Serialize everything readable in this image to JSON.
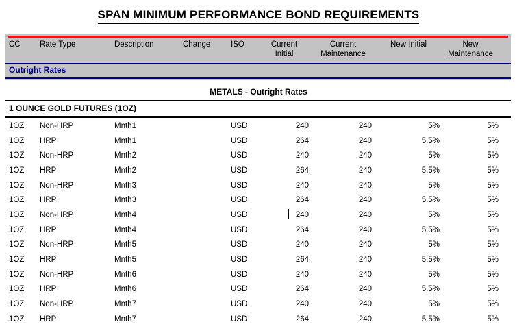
{
  "title": "SPAN MINIMUM PERFORMANCE BOND REQUIREMENTS",
  "band_label": "Outright Rates",
  "section_title": "METALS - Outright Rates",
  "group_title": "1 OUNCE GOLD FUTURES (1OZ)",
  "colors": {
    "accent_red": "#ee1111",
    "navy": "#000090",
    "band_gray": "#c3c3c3"
  },
  "headers": [
    {
      "l1": "CC",
      "l2": ""
    },
    {
      "l1": "Rate Type",
      "l2": ""
    },
    {
      "l1": "Description",
      "l2": ""
    },
    {
      "l1": "Change",
      "l2": ""
    },
    {
      "l1": "ISO",
      "l2": ""
    },
    {
      "l1": "Current",
      "l2": "Initial"
    },
    {
      "l1": "Current",
      "l2": "Maintenance"
    },
    {
      "l1": "New Initial",
      "l2": ""
    },
    {
      "l1": "New",
      "l2": "Maintenance"
    }
  ],
  "rows": [
    {
      "cc": "1OZ",
      "rate_type": "Non-HRP",
      "description": "Mnth1",
      "change": "",
      "iso": "USD",
      "current_initial": "240",
      "current_maintenance": "240",
      "new_initial": "5%",
      "new_maintenance": "5%"
    },
    {
      "cc": "1OZ",
      "rate_type": "HRP",
      "description": "Mnth1",
      "change": "",
      "iso": "USD",
      "current_initial": "264",
      "current_maintenance": "240",
      "new_initial": "5.5%",
      "new_maintenance": "5%"
    },
    {
      "cc": "1OZ",
      "rate_type": "Non-HRP",
      "description": "Mnth2",
      "change": "",
      "iso": "USD",
      "current_initial": "240",
      "current_maintenance": "240",
      "new_initial": "5%",
      "new_maintenance": "5%"
    },
    {
      "cc": "1OZ",
      "rate_type": "HRP",
      "description": "Mnth2",
      "change": "",
      "iso": "USD",
      "current_initial": "264",
      "current_maintenance": "240",
      "new_initial": "5.5%",
      "new_maintenance": "5%"
    },
    {
      "cc": "1OZ",
      "rate_type": "Non-HRP",
      "description": "Mnth3",
      "change": "",
      "iso": "USD",
      "current_initial": "240",
      "current_maintenance": "240",
      "new_initial": "5%",
      "new_maintenance": "5%"
    },
    {
      "cc": "1OZ",
      "rate_type": "HRP",
      "description": "Mnth3",
      "change": "",
      "iso": "USD",
      "current_initial": "264",
      "current_maintenance": "240",
      "new_initial": "5.5%",
      "new_maintenance": "5%"
    },
    {
      "cc": "1OZ",
      "rate_type": "Non-HRP",
      "description": "Mnth4",
      "change": "",
      "iso": "USD",
      "current_initial": "240",
      "current_maintenance": "240",
      "new_initial": "5%",
      "new_maintenance": "5%"
    },
    {
      "cc": "1OZ",
      "rate_type": "HRP",
      "description": "Mnth4",
      "change": "",
      "iso": "USD",
      "current_initial": "264",
      "current_maintenance": "240",
      "new_initial": "5.5%",
      "new_maintenance": "5%"
    },
    {
      "cc": "1OZ",
      "rate_type": "Non-HRP",
      "description": "Mnth5",
      "change": "",
      "iso": "USD",
      "current_initial": "240",
      "current_maintenance": "240",
      "new_initial": "5%",
      "new_maintenance": "5%"
    },
    {
      "cc": "1OZ",
      "rate_type": "HRP",
      "description": "Mnth5",
      "change": "",
      "iso": "USD",
      "current_initial": "264",
      "current_maintenance": "240",
      "new_initial": "5.5%",
      "new_maintenance": "5%"
    },
    {
      "cc": "1OZ",
      "rate_type": "Non-HRP",
      "description": "Mnth6",
      "change": "",
      "iso": "USD",
      "current_initial": "240",
      "current_maintenance": "240",
      "new_initial": "5%",
      "new_maintenance": "5%"
    },
    {
      "cc": "1OZ",
      "rate_type": "HRP",
      "description": "Mnth6",
      "change": "",
      "iso": "USD",
      "current_initial": "264",
      "current_maintenance": "240",
      "new_initial": "5.5%",
      "new_maintenance": "5%"
    },
    {
      "cc": "1OZ",
      "rate_type": "Non-HRP",
      "description": "Mnth7",
      "change": "",
      "iso": "USD",
      "current_initial": "240",
      "current_maintenance": "240",
      "new_initial": "5%",
      "new_maintenance": "5%"
    },
    {
      "cc": "1OZ",
      "rate_type": "HRP",
      "description": "Mnth7",
      "change": "",
      "iso": "USD",
      "current_initial": "264",
      "current_maintenance": "240",
      "new_initial": "5.5%",
      "new_maintenance": "5%"
    }
  ]
}
